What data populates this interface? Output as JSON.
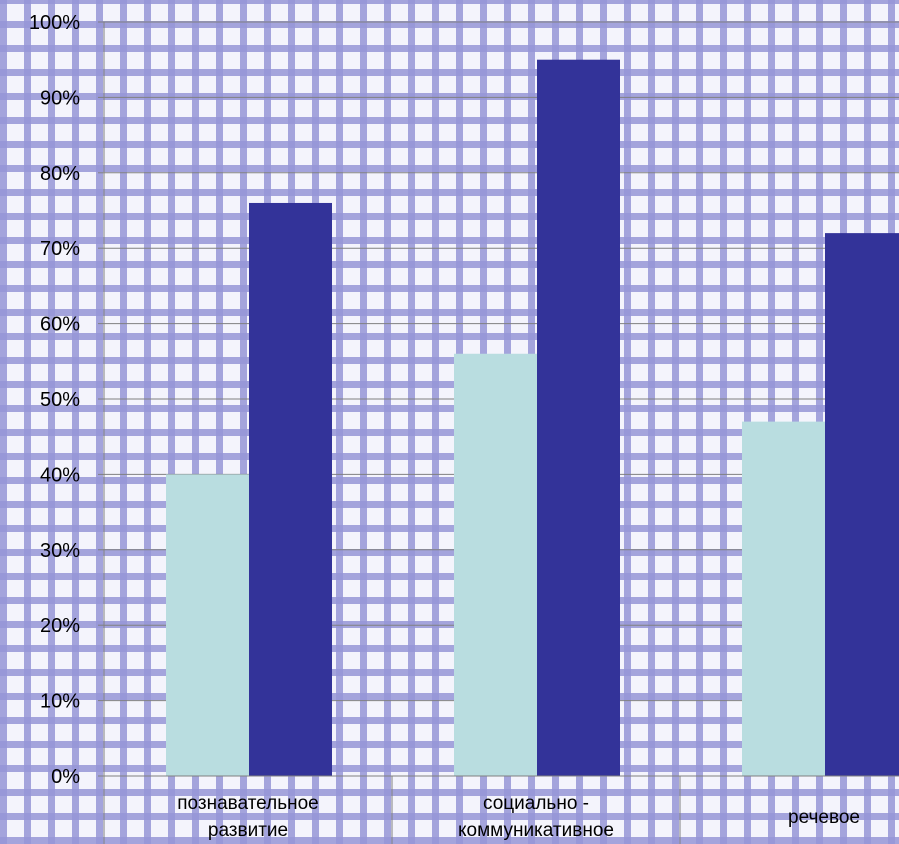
{
  "chart_data": {
    "type": "bar",
    "categories": [
      [
        "познавательное",
        "развитие"
      ],
      [
        "социально -",
        "коммуникативное"
      ],
      [
        "речевое"
      ]
    ],
    "series": [
      {
        "color": "#b9dde0",
        "values": [
          40,
          56,
          47
        ]
      },
      {
        "color": "#333399",
        "values": [
          76,
          95,
          72
        ]
      }
    ],
    "yticks": [
      "0%",
      "10%",
      "20%",
      "30%",
      "40%",
      "50%",
      "60%",
      "70%",
      "80%",
      "90%",
      "100%"
    ],
    "ylim": [
      0,
      100
    ],
    "grid": true,
    "legend": "none"
  }
}
